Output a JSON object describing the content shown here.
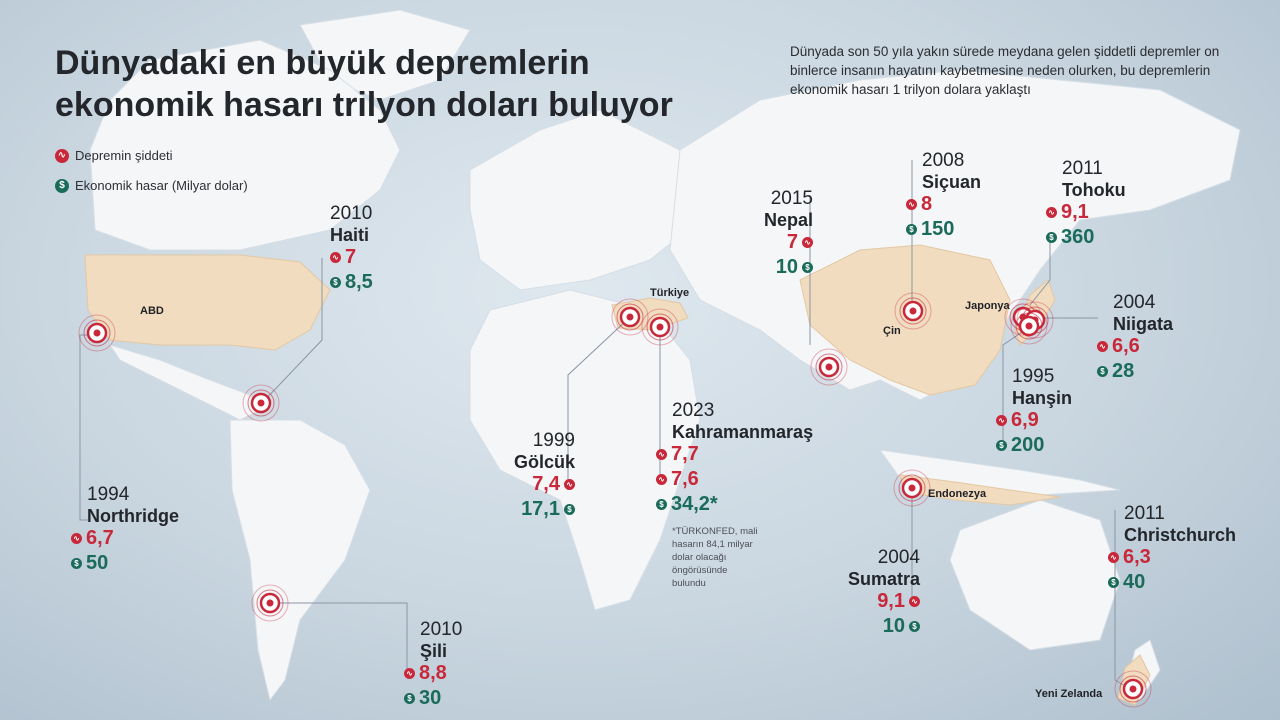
{
  "title": {
    "line1": "Dünyadaki en büyük depremlerin",
    "line2": "ekonomik hasarı trilyon doları buluyor"
  },
  "intro": "Dünyada son 50 yıla yakın sürede meydana gelen şiddetli depremler on binlerce insanın hayatını kaybetmesine neden olurken, bu depremlerin ekonomik hasarı 1 trilyon dolara yaklaştı",
  "legend": {
    "severity_label": "Depremin şiddeti",
    "damage_label": "Ekonomik hasar (Milyar dolar)"
  },
  "colors": {
    "severity": "#c8283a",
    "damage": "#1b6b5a",
    "highlight_land": "#f1dcc0",
    "land": "#f4f6f8"
  },
  "countries": {
    "usa": "ABD",
    "turkey": "Türkiye",
    "china": "Çin",
    "japan": "Japonya",
    "indonesia": "Endonezya",
    "new_zealand": "Yeni Zelanda"
  },
  "earthquakes": {
    "haiti": {
      "year": "2010",
      "name": "Haiti",
      "magnitude": "7",
      "damage": "8,5"
    },
    "northridge": {
      "year": "1994",
      "name": "Northridge",
      "magnitude": "6,7",
      "damage": "50"
    },
    "chile": {
      "year": "2010",
      "name": "Şili",
      "magnitude": "8,8",
      "damage": "30"
    },
    "golcuk": {
      "year": "1999",
      "name": "Gölcük",
      "magnitude": "7,4",
      "damage": "17,1"
    },
    "kahramanmaras": {
      "year": "2023",
      "name": "Kahramanmaraş",
      "magnitude": "7,7",
      "magnitude2": "7,6",
      "damage": "34,2*"
    },
    "nepal": {
      "year": "2015",
      "name": "Nepal",
      "magnitude": "7",
      "damage": "10"
    },
    "sichuan": {
      "year": "2008",
      "name": "Siçuan",
      "magnitude": "8",
      "damage": "150"
    },
    "tohoku": {
      "year": "2011",
      "name": "Tohoku",
      "magnitude": "9,1",
      "damage": "360"
    },
    "niigata": {
      "year": "2004",
      "name": "Niigata",
      "magnitude": "6,6",
      "damage": "28"
    },
    "hanshin": {
      "year": "1995",
      "name": "Hanşin",
      "magnitude": "6,9",
      "damage": "200"
    },
    "sumatra": {
      "year": "2004",
      "name": "Sumatra",
      "magnitude": "9,1",
      "damage": "10"
    },
    "christchurch": {
      "year": "2011",
      "name": "Christchurch",
      "magnitude": "6,3",
      "damage": "40"
    }
  },
  "note": {
    "line1": "*TÜRKONFED, mali",
    "line2": "hasarın 84,1 milyar",
    "line3": "dolar olacağı",
    "line4": "öngörüsünde",
    "line5": "bulundu"
  }
}
